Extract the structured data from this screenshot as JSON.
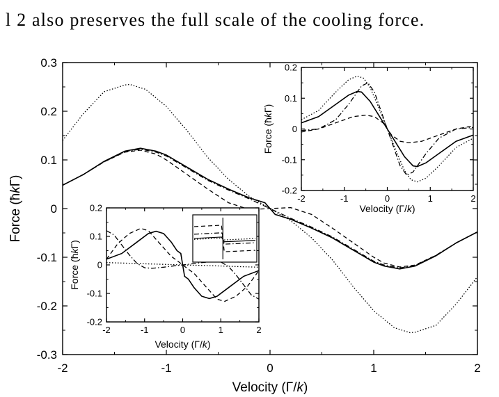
{
  "caption_text": "l 2 also preserves the full scale of the cooling force.",
  "chart_data": [
    {
      "id": "main",
      "type": "line",
      "xlabel": "Velocity (Γ/k)",
      "ylabel": "Force (ħkΓ)",
      "xlim": [
        -2,
        2
      ],
      "ylim": [
        -0.3,
        0.3
      ],
      "xticks": [
        -2,
        -1,
        0,
        1,
        2
      ],
      "yticks": [
        -0.3,
        -0.2,
        -0.1,
        0,
        0.1,
        0.2,
        0.3
      ],
      "xtick_labels": [
        "-2",
        "-1",
        "0",
        "1",
        "2"
      ],
      "ytick_labels": [
        "-0.3",
        "-0.2",
        "-0.1",
        "0",
        "0.1",
        "0.2",
        "0.3"
      ],
      "grid": false,
      "series": [
        {
          "style": "dotted",
          "x": [
            -2,
            -1.8,
            -1.6,
            -1.4,
            -1.35,
            -1.2,
            -1.0,
            -0.8,
            -0.6,
            -0.4,
            -0.2,
            0,
            0.2,
            0.4,
            0.6,
            0.8,
            1.0,
            1.2,
            1.35,
            1.4,
            1.6,
            1.8,
            2
          ],
          "y": [
            0.14,
            0.195,
            0.24,
            0.254,
            0.255,
            0.245,
            0.21,
            0.16,
            0.105,
            0.06,
            0.025,
            0.0,
            -0.025,
            -0.06,
            -0.105,
            -0.16,
            -0.21,
            -0.245,
            -0.255,
            -0.254,
            -0.24,
            -0.195,
            -0.14
          ]
        },
        {
          "style": "solid",
          "x": [
            -2,
            -1.8,
            -1.6,
            -1.4,
            -1.25,
            -1.1,
            -1.0,
            -0.8,
            -0.6,
            -0.4,
            -0.2,
            -0.05,
            0,
            0.05,
            0.2,
            0.4,
            0.6,
            0.8,
            1.0,
            1.1,
            1.25,
            1.4,
            1.6,
            1.8,
            2
          ],
          "y": [
            0.048,
            0.07,
            0.097,
            0.118,
            0.124,
            0.118,
            0.11,
            0.085,
            0.06,
            0.04,
            0.022,
            0.012,
            0.0,
            -0.012,
            -0.022,
            -0.04,
            -0.06,
            -0.085,
            -0.11,
            -0.118,
            -0.124,
            -0.118,
            -0.097,
            -0.07,
            -0.048
          ]
        },
        {
          "style": "dashdot",
          "x": [
            -2,
            -1.8,
            -1.6,
            -1.4,
            -1.25,
            -1.1,
            -1.0,
            -0.8,
            -0.6,
            -0.4,
            -0.2,
            0,
            0.2,
            0.4,
            0.6,
            0.8,
            1.0,
            1.1,
            1.25,
            1.4,
            1.6,
            1.8,
            2
          ],
          "y": [
            0.048,
            0.07,
            0.096,
            0.117,
            0.122,
            0.116,
            0.108,
            0.083,
            0.058,
            0.038,
            0.02,
            0.0,
            -0.02,
            -0.038,
            -0.058,
            -0.083,
            -0.108,
            -0.116,
            -0.122,
            -0.117,
            -0.096,
            -0.07,
            -0.048
          ]
        },
        {
          "style": "dashed",
          "x": [
            -2,
            -1.8,
            -1.6,
            -1.4,
            -1.25,
            -1.1,
            -1.0,
            -0.8,
            -0.6,
            -0.4,
            -0.2,
            0,
            0.2,
            0.4,
            0.6,
            0.8,
            1.0,
            1.1,
            1.25,
            1.4,
            1.6,
            1.8,
            2
          ],
          "y": [
            0.048,
            0.07,
            0.096,
            0.116,
            0.12,
            0.112,
            0.1,
            0.07,
            0.04,
            0.012,
            -0.002,
            0.0,
            0.002,
            -0.012,
            -0.04,
            -0.07,
            -0.1,
            -0.112,
            -0.12,
            -0.116,
            -0.096,
            -0.07,
            -0.048
          ]
        }
      ]
    },
    {
      "id": "inset_right",
      "type": "line",
      "xlabel": "Velocity (Γ/k)",
      "ylabel": "Force (ħkΓ)",
      "xlim": [
        -2,
        2
      ],
      "ylim": [
        -0.2,
        0.2
      ],
      "xticks": [
        -2,
        -1,
        0,
        1,
        2
      ],
      "yticks": [
        -0.2,
        -0.1,
        0,
        0.1,
        0.2
      ],
      "xtick_labels": [
        "-2",
        "-1",
        "0",
        "1",
        "2"
      ],
      "ytick_labels": [
        "-0.2",
        "-0.1",
        "0",
        "0.1",
        "0.2"
      ],
      "grid": false,
      "series": [
        {
          "style": "dotted",
          "x": [
            -2,
            -1.6,
            -1.2,
            -0.9,
            -0.7,
            -0.55,
            -0.4,
            -0.2,
            0,
            0.2,
            0.4,
            0.55,
            0.7,
            0.9,
            1.2,
            1.6,
            2
          ],
          "y": [
            0.03,
            0.06,
            0.12,
            0.16,
            0.172,
            0.165,
            0.135,
            0.07,
            0.0,
            -0.07,
            -0.135,
            -0.165,
            -0.172,
            -0.16,
            -0.12,
            -0.06,
            -0.03
          ]
        },
        {
          "style": "solid",
          "x": [
            -2,
            -1.6,
            -1.2,
            -0.9,
            -0.7,
            -0.6,
            -0.4,
            -0.2,
            0,
            0.2,
            0.4,
            0.6,
            0.7,
            0.9,
            1.2,
            1.6,
            2
          ],
          "y": [
            0.02,
            0.04,
            0.08,
            0.11,
            0.122,
            0.12,
            0.09,
            0.045,
            0.0,
            -0.045,
            -0.09,
            -0.12,
            -0.122,
            -0.11,
            -0.08,
            -0.04,
            -0.02
          ]
        },
        {
          "style": "dashdot",
          "x": [
            -2,
            -1.6,
            -1.2,
            -0.9,
            -0.6,
            -0.45,
            -0.3,
            -0.15,
            0,
            0.15,
            0.3,
            0.45,
            0.6,
            0.9,
            1.2,
            1.6,
            2
          ],
          "y": [
            -0.005,
            0.0,
            0.03,
            0.08,
            0.14,
            0.15,
            0.12,
            0.06,
            0.0,
            -0.06,
            -0.12,
            -0.15,
            -0.14,
            -0.08,
            -0.03,
            0.0,
            0.005
          ]
        },
        {
          "style": "dashed",
          "x": [
            -2,
            -1.6,
            -1.2,
            -0.8,
            -0.5,
            -0.3,
            -0.1,
            0,
            0.1,
            0.3,
            0.5,
            0.8,
            1.2,
            1.6,
            2
          ],
          "y": [
            -0.01,
            0.0,
            0.02,
            0.04,
            0.045,
            0.04,
            0.02,
            0.0,
            -0.02,
            -0.04,
            -0.045,
            -0.04,
            -0.02,
            0.0,
            0.01
          ]
        }
      ]
    },
    {
      "id": "inset_left",
      "type": "line",
      "xlabel": "Velocity (Γ/k)",
      "ylabel": "Force (ħkΓ)",
      "xlim": [
        -2,
        2
      ],
      "ylim": [
        -0.2,
        0.2
      ],
      "xticks": [
        -2,
        -1,
        0,
        1,
        2
      ],
      "yticks": [
        -0.2,
        -0.1,
        0,
        0.1,
        0.2
      ],
      "xtick_labels": [
        "-2",
        "-1",
        "0",
        "1",
        "2"
      ],
      "ytick_labels": [
        "-0.2",
        "-0.1",
        "0",
        "0.1",
        "0.2"
      ],
      "grid": false,
      "series": [
        {
          "style": "solid",
          "x": [
            -2,
            -1.6,
            -1.2,
            -0.9,
            -0.7,
            -0.5,
            -0.3,
            -0.15,
            -0.05,
            0.0,
            0.05,
            0.15,
            0.3,
            0.5,
            0.7,
            0.9,
            1.2,
            1.6,
            2
          ],
          "y": [
            0.02,
            0.04,
            0.08,
            0.11,
            0.118,
            0.11,
            0.08,
            0.05,
            0.04,
            0.0,
            -0.04,
            -0.05,
            -0.08,
            -0.11,
            -0.118,
            -0.11,
            -0.08,
            -0.04,
            -0.02
          ]
        },
        {
          "style": "dashdot",
          "x": [
            -2,
            -1.8,
            -1.6,
            -1.4,
            -1.2,
            -1.0,
            -0.8,
            -0.5,
            -0.2,
            0.0,
            0.2,
            0.5,
            0.8,
            1.0,
            1.2,
            1.4,
            1.6,
            1.8,
            2
          ],
          "y": [
            0.12,
            0.105,
            0.07,
            0.035,
            0.005,
            -0.01,
            -0.012,
            -0.008,
            -0.003,
            0.0,
            0.003,
            0.008,
            0.012,
            0.01,
            -0.005,
            -0.035,
            -0.07,
            -0.105,
            -0.12
          ]
        },
        {
          "style": "dashed",
          "x": [
            -2,
            -1.7,
            -1.4,
            -1.1,
            -0.9,
            -0.6,
            -0.3,
            -0.05,
            0.0,
            0.05,
            0.3,
            0.6,
            0.9,
            1.1,
            1.4,
            1.7,
            2
          ],
          "y": [
            0.02,
            0.075,
            0.11,
            0.128,
            0.12,
            0.075,
            0.03,
            0.005,
            0.0,
            -0.005,
            -0.03,
            -0.075,
            -0.12,
            -0.128,
            -0.11,
            -0.075,
            -0.02
          ]
        },
        {
          "style": "dotted",
          "x": [
            -2,
            -1.5,
            -1.0,
            -0.5,
            0.0,
            0.5,
            1.0,
            1.5,
            2
          ],
          "y": [
            0.008,
            0.006,
            0.004,
            0.002,
            0.0,
            -0.002,
            -0.004,
            -0.006,
            -0.008
          ]
        }
      ]
    }
  ]
}
